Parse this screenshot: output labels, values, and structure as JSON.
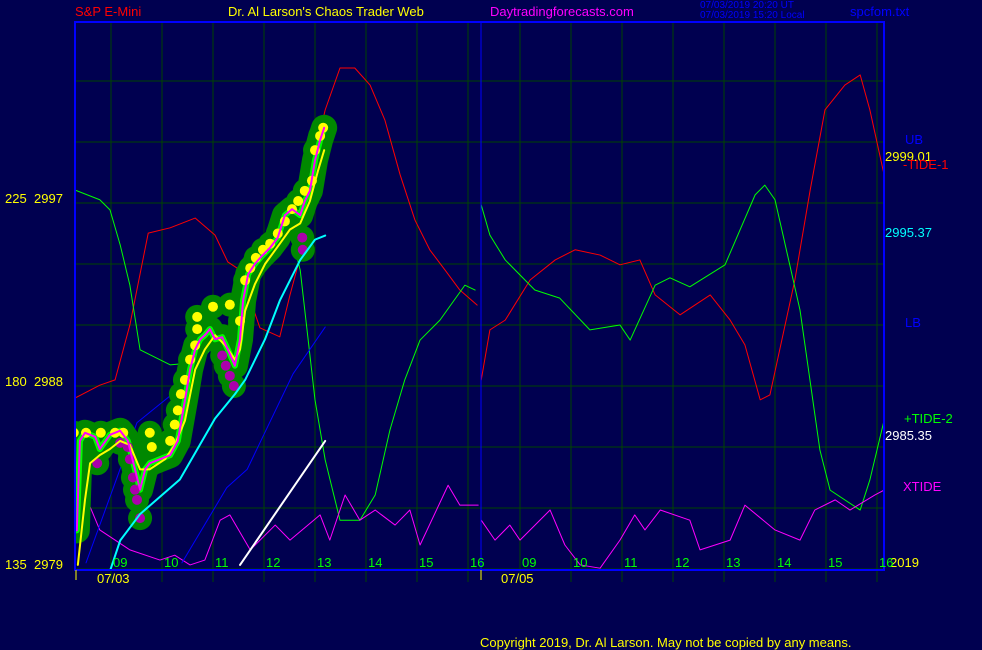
{
  "header": {
    "symbol": "S&P E-Mini",
    "title": "Dr. Al Larson's Chaos Trader Web",
    "site": "Daytradingforecasts.com",
    "time_ut": "07/03/2019 20:20 UT",
    "time_local": "07/03/2019 15:20 Local",
    "file": "spcfom.txt"
  },
  "footer": {
    "copyright": "Copyright 2019, Dr. Al Larson. May not be copied by any means."
  },
  "colors": {
    "background": "#000050",
    "frame": "#0000ff",
    "grid": "#004400",
    "tide1": "#ff0000",
    "tide2": "#00ff00",
    "xtide": "#ff00ff",
    "price_band": "#008800",
    "close": "#ffff00",
    "band": "#00ffff"
  },
  "chart_data": {
    "type": "line",
    "days": [
      "07/03",
      "07/05"
    ],
    "year_label": "2019",
    "x_ticks": [
      "09",
      "10",
      "11",
      "12",
      "13",
      "14",
      "15",
      "16"
    ],
    "y_ticks_left": [
      {
        "osc": "225",
        "price": "2997"
      },
      {
        "osc": "180",
        "price": "2988"
      },
      {
        "osc": "135",
        "price": "2979"
      }
    ],
    "price_range": [
      2979,
      3003
    ],
    "osc_range": [
      135,
      225
    ],
    "grid": true,
    "right_labels": {
      "ub": "UB",
      "last_price": "2999.01",
      "tide1": "-TIDE-1",
      "lower_band_value": "2995.37",
      "lb": "LB",
      "tide2": "+TIDE-2",
      "tide2_value": "2985.35",
      "xtide": "XTIDE"
    },
    "price": {
      "day": 0,
      "points": [
        [
          8.33,
          2980.9
        ],
        [
          8.39,
          2985.3
        ],
        [
          8.49,
          2985.7
        ],
        [
          8.69,
          2985.5
        ],
        [
          8.78,
          2984.9
        ],
        [
          8.98,
          2985.6
        ],
        [
          9.18,
          2985.8
        ],
        [
          9.33,
          2985.3
        ],
        [
          9.47,
          2983.9
        ],
        [
          9.57,
          2982.9
        ],
        [
          9.67,
          2983.9
        ],
        [
          9.76,
          2984.2
        ],
        [
          9.96,
          2984.4
        ],
        [
          10.16,
          2984.6
        ],
        [
          10.31,
          2985.3
        ],
        [
          10.45,
          2987.3
        ],
        [
          10.55,
          2988.8
        ],
        [
          10.65,
          2989.8
        ],
        [
          10.75,
          2990.3
        ],
        [
          10.84,
          2990.5
        ],
        [
          10.94,
          2990.8
        ],
        [
          11.04,
          2990.3
        ],
        [
          11.18,
          2990.4
        ],
        [
          11.29,
          2989.8
        ],
        [
          11.43,
          2989.0
        ],
        [
          11.53,
          2990.3
        ],
        [
          11.59,
          2992.2
        ],
        [
          11.69,
          2993.5
        ],
        [
          11.82,
          2994.0
        ],
        [
          11.96,
          2994.4
        ],
        [
          12.12,
          2994.8
        ],
        [
          12.27,
          2995.3
        ],
        [
          12.41,
          2996.4
        ],
        [
          12.55,
          2996.7
        ],
        [
          12.71,
          2996.4
        ],
        [
          12.8,
          2997.1
        ],
        [
          12.9,
          2997.6
        ],
        [
          13.0,
          2999.1
        ],
        [
          13.1,
          3000.1
        ],
        [
          13.18,
          3000.7
        ]
      ]
    },
    "close_average": {
      "day": 0,
      "points": [
        [
          8.35,
          2979.2
        ],
        [
          8.49,
          2982.4
        ],
        [
          8.59,
          2984.2
        ],
        [
          8.78,
          2984.6
        ],
        [
          8.98,
          2984.9
        ],
        [
          9.18,
          2985.3
        ],
        [
          9.37,
          2985.1
        ],
        [
          9.57,
          2983.9
        ],
        [
          9.76,
          2983.9
        ],
        [
          10.06,
          2984.4
        ],
        [
          10.25,
          2985.1
        ],
        [
          10.45,
          2986.3
        ],
        [
          10.65,
          2988.8
        ],
        [
          10.84,
          2989.8
        ],
        [
          11.04,
          2990.5
        ],
        [
          11.24,
          2990.0
        ],
        [
          11.43,
          2989.3
        ],
        [
          11.53,
          2989.8
        ],
        [
          11.63,
          2991.7
        ],
        [
          11.82,
          2993.0
        ],
        [
          12.02,
          2994.0
        ],
        [
          12.31,
          2995.0
        ],
        [
          12.51,
          2995.7
        ],
        [
          12.71,
          2996.0
        ],
        [
          12.9,
          2997.1
        ],
        [
          13.06,
          2998.6
        ],
        [
          13.18,
          2999.6
        ]
      ]
    },
    "high_dots": [
      [
        8.27,
        2985.7
      ],
      [
        8.51,
        2985.7
      ],
      [
        8.8,
        2985.7
      ],
      [
        9.08,
        2985.7
      ],
      [
        9.24,
        2985.7
      ],
      [
        9.76,
        2985.7
      ],
      [
        9.8,
        2985.0
      ],
      [
        10.16,
        2985.3
      ],
      [
        10.25,
        2986.1
      ],
      [
        10.31,
        2986.8
      ],
      [
        10.37,
        2987.6
      ],
      [
        10.45,
        2988.3
      ],
      [
        10.55,
        2989.3
      ],
      [
        10.65,
        2990.0
      ],
      [
        10.69,
        2990.8
      ],
      [
        10.69,
        2991.4
      ],
      [
        11.0,
        2991.9
      ],
      [
        11.33,
        2992.0
      ],
      [
        11.53,
        2991.2
      ],
      [
        11.63,
        2993.2
      ],
      [
        11.73,
        2993.8
      ],
      [
        11.84,
        2994.3
      ],
      [
        11.98,
        2994.7
      ],
      [
        12.12,
        2995.0
      ],
      [
        12.27,
        2995.5
      ],
      [
        12.41,
        2996.1
      ],
      [
        12.55,
        2996.7
      ],
      [
        12.67,
        2997.1
      ],
      [
        12.8,
        2997.6
      ],
      [
        12.94,
        2998.1
      ],
      [
        13.0,
        2999.6
      ],
      [
        13.1,
        3000.3
      ],
      [
        13.16,
        3000.7
      ]
    ],
    "low_dots": [
      [
        8.73,
        2984.2
      ],
      [
        9.18,
        2985.2
      ],
      [
        9.33,
        2985.0
      ],
      [
        9.37,
        2984.4
      ],
      [
        9.43,
        2983.5
      ],
      [
        9.47,
        2982.9
      ],
      [
        9.51,
        2982.4
      ],
      [
        9.57,
        2981.5
      ],
      [
        11.18,
        2989.5
      ],
      [
        11.25,
        2989.0
      ],
      [
        11.33,
        2988.5
      ],
      [
        11.41,
        2988.0
      ],
      [
        12.75,
        2995.3
      ],
      [
        12.76,
        2994.7
      ]
    ],
    "lower_band": {
      "day": 0,
      "points": [
        [
          8.98,
          2978.9
        ],
        [
          9.18,
          2980.4
        ],
        [
          9.57,
          2981.7
        ],
        [
          10.35,
          2983.4
        ],
        [
          11.04,
          2986.4
        ],
        [
          11.43,
          2987.6
        ],
        [
          11.63,
          2988.3
        ],
        [
          12.02,
          2990.3
        ],
        [
          12.31,
          2992.2
        ],
        [
          12.71,
          2994.2
        ],
        [
          13.0,
          2995.2
        ],
        [
          13.2,
          2995.4
        ]
      ]
    },
    "blue_line_1": {
      "day": 0,
      "points": [
        [
          8.51,
          2979.3
        ],
        [
          9.51,
          2986.2
        ],
        [
          10.25,
          2987.7
        ]
      ]
    },
    "blue_line_2": {
      "day": 0,
      "points": [
        [
          10.39,
          2979.3
        ],
        [
          11.27,
          2983.0
        ],
        [
          11.67,
          2983.9
        ],
        [
          12.57,
          2988.6
        ],
        [
          13.2,
          2990.9
        ]
      ]
    },
    "white_line": {
      "day": 0,
      "points": [
        [
          11.53,
          2979.2
        ],
        [
          13.2,
          2985.3
        ]
      ]
    },
    "tide1": [
      {
        "day": 0,
        "points": [
          [
            8.29,
            177.0
          ],
          [
            8.78,
            180.2
          ],
          [
            9.08,
            181.5
          ],
          [
            9.37,
            195.0
          ],
          [
            9.73,
            217.6
          ],
          [
            10.16,
            218.9
          ],
          [
            10.65,
            221.3
          ],
          [
            11.04,
            217.1
          ],
          [
            11.29,
            210.5
          ],
          [
            11.53,
            208.5
          ],
          [
            11.92,
            194.3
          ],
          [
            12.31,
            192.1
          ],
          [
            12.51,
            202.4
          ],
          [
            12.71,
            211.7
          ],
          [
            12.9,
            231.9
          ],
          [
            13.2,
            247.9
          ],
          [
            13.49,
            258.2
          ],
          [
            13.78,
            258.2
          ],
          [
            14.08,
            254.0
          ],
          [
            14.37,
            245.4
          ],
          [
            14.67,
            231.9
          ],
          [
            14.96,
            220.8
          ],
          [
            15.25,
            213.5
          ],
          [
            15.55,
            208.5
          ],
          [
            15.84,
            203.6
          ],
          [
            16.18,
            199.9
          ]
        ]
      },
      {
        "day": 1,
        "points": [
          [
            8.24,
            181.5
          ],
          [
            8.41,
            193.8
          ],
          [
            8.71,
            196.2
          ],
          [
            9.2,
            206.1
          ],
          [
            9.69,
            211.0
          ],
          [
            10.08,
            213.5
          ],
          [
            10.57,
            212.2
          ],
          [
            10.96,
            209.8
          ],
          [
            11.35,
            211.0
          ],
          [
            11.65,
            202.4
          ],
          [
            12.14,
            197.5
          ],
          [
            12.73,
            202.4
          ],
          [
            13.12,
            196.2
          ],
          [
            13.41,
            190.1
          ],
          [
            13.71,
            176.6
          ],
          [
            13.9,
            177.8
          ],
          [
            14.39,
            206.1
          ],
          [
            14.69,
            228.2
          ],
          [
            14.98,
            247.9
          ],
          [
            15.37,
            254.0
          ],
          [
            15.67,
            256.5
          ],
          [
            15.86,
            247.9
          ],
          [
            16.14,
            231.9
          ]
        ]
      }
    ],
    "tide2": [
      {
        "day": 0,
        "points": [
          [
            8.29,
            228.2
          ],
          [
            8.78,
            225.8
          ],
          [
            8.98,
            223.3
          ],
          [
            9.18,
            214.7
          ],
          [
            9.37,
            204.8
          ],
          [
            9.57,
            188.9
          ],
          [
            10.16,
            185.2
          ],
          [
            10.75,
            185.9
          ],
          [
            11.33,
            195.0
          ],
          [
            11.73,
            201.2
          ],
          [
            12.12,
            213.5
          ],
          [
            12.51,
            218.4
          ],
          [
            12.71,
            208.5
          ],
          [
            13.0,
            176.6
          ],
          [
            13.2,
            161.8
          ],
          [
            13.49,
            147.0
          ],
          [
            13.88,
            147.0
          ],
          [
            14.18,
            153.2
          ],
          [
            14.47,
            169.2
          ],
          [
            14.76,
            181.5
          ],
          [
            15.06,
            191.3
          ],
          [
            15.45,
            196.2
          ],
          [
            15.94,
            204.8
          ],
          [
            16.14,
            203.6
          ]
        ]
      },
      {
        "day": 1,
        "points": [
          [
            8.24,
            224.5
          ],
          [
            8.41,
            217.1
          ],
          [
            8.71,
            211.0
          ],
          [
            9.29,
            203.6
          ],
          [
            9.78,
            201.6
          ],
          [
            10.37,
            193.8
          ],
          [
            10.96,
            195.0
          ],
          [
            11.16,
            191.3
          ],
          [
            11.65,
            204.8
          ],
          [
            11.94,
            206.6
          ],
          [
            12.33,
            204.4
          ],
          [
            13.02,
            209.8
          ],
          [
            13.61,
            227.0
          ],
          [
            13.8,
            229.4
          ],
          [
            14.0,
            225.8
          ],
          [
            14.49,
            198.7
          ],
          [
            14.88,
            164.3
          ],
          [
            15.08,
            154.4
          ],
          [
            15.67,
            149.5
          ],
          [
            15.86,
            156.9
          ],
          [
            16.14,
            171.6
          ]
        ]
      }
    ],
    "xtide": [
      {
        "day": 0,
        "points": [
          [
            8.29,
            159.3
          ],
          [
            8.78,
            144.6
          ],
          [
            9.37,
            139.7
          ],
          [
            9.96,
            137.2
          ],
          [
            10.25,
            138.4
          ],
          [
            10.55,
            136.0
          ],
          [
            10.84,
            137.2
          ],
          [
            11.14,
            147.0
          ],
          [
            11.33,
            148.3
          ],
          [
            11.73,
            139.7
          ],
          [
            12.22,
            145.8
          ],
          [
            12.51,
            142.1
          ],
          [
            13.1,
            148.3
          ],
          [
            13.29,
            142.1
          ],
          [
            13.59,
            153.2
          ],
          [
            13.88,
            147.0
          ],
          [
            14.18,
            149.5
          ],
          [
            14.57,
            145.8
          ],
          [
            14.86,
            149.5
          ],
          [
            15.06,
            140.9
          ],
          [
            15.61,
            155.6
          ],
          [
            15.84,
            150.7
          ],
          [
            16.2,
            150.7
          ]
        ]
      },
      {
        "day": 1,
        "points": [
          [
            8.24,
            147.0
          ],
          [
            8.51,
            142.1
          ],
          [
            8.8,
            145.8
          ],
          [
            9.0,
            142.1
          ],
          [
            9.59,
            149.5
          ],
          [
            9.88,
            140.9
          ],
          [
            10.18,
            136.0
          ],
          [
            10.57,
            135.2
          ],
          [
            10.96,
            142.1
          ],
          [
            11.25,
            148.3
          ],
          [
            11.45,
            144.6
          ],
          [
            11.75,
            149.5
          ],
          [
            12.33,
            147.0
          ],
          [
            12.53,
            139.7
          ],
          [
            13.12,
            142.1
          ],
          [
            13.41,
            150.7
          ],
          [
            14.0,
            144.6
          ],
          [
            14.49,
            142.1
          ],
          [
            14.78,
            149.5
          ],
          [
            15.18,
            152.0
          ],
          [
            15.47,
            149.5
          ],
          [
            15.96,
            153.2
          ],
          [
            16.14,
            154.4
          ]
        ]
      }
    ]
  }
}
